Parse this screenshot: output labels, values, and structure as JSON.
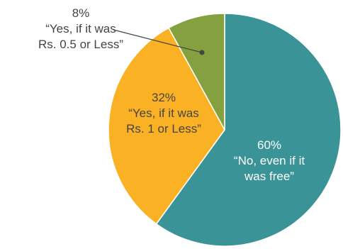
{
  "chart_data": {
    "type": "pie",
    "title": "",
    "slices": [
      {
        "value": 60,
        "pct_label": "60%",
        "lines": [
          "“No, even if it",
          "was free”"
        ],
        "color": "#3a9396",
        "label_color": "#ffffff"
      },
      {
        "value": 32,
        "pct_label": "32%",
        "lines": [
          "“Yes, if it was",
          "Rs. 1 or Less”"
        ],
        "color": "#fbb124",
        "label_color": "#444444"
      },
      {
        "value": 8,
        "pct_label": "8%",
        "lines": [
          "“Yes, if it was",
          "Rs. 0.5 or Less”"
        ],
        "color": "#85a13f",
        "label_color": "#444444"
      }
    ],
    "leader_line_color": "#444444",
    "legend": "none"
  }
}
